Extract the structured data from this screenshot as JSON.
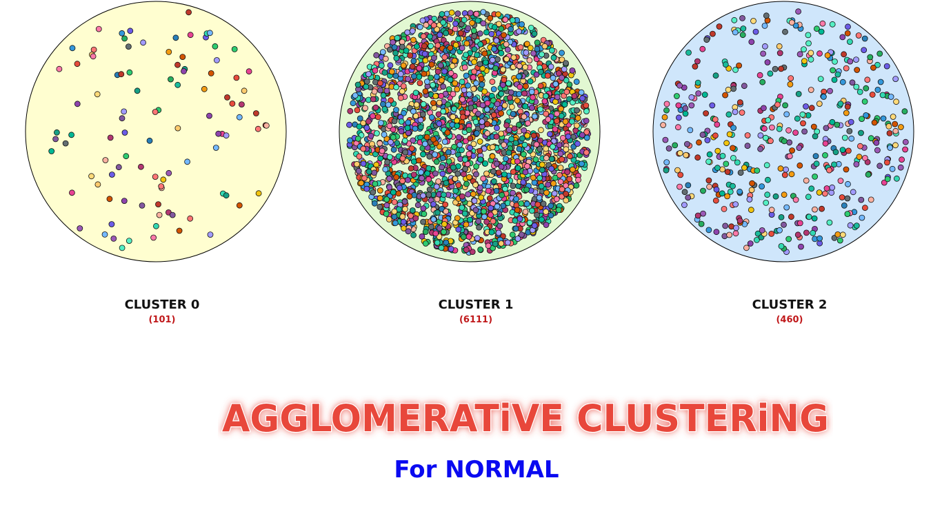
{
  "clusters": [
    {
      "label": "CLUSTER 0",
      "count": "(101)",
      "points": 101,
      "fill": "#fffed0"
    },
    {
      "label": "CLUSTER 1",
      "count": "(6111)",
      "points": 6111,
      "fill": "#e2f8d2"
    },
    {
      "label": "CLUSTER 2",
      "count": "(460)",
      "points": 460,
      "fill": "#cfe6fb"
    }
  ],
  "title": "AGGLOMERATiVE CLUSTERiNG",
  "subtitle": "For NORMAL",
  "colors": {
    "count_text": "#c0181a",
    "subtitle_text": "#0a0af0",
    "title_fill": "#e8463a"
  }
}
